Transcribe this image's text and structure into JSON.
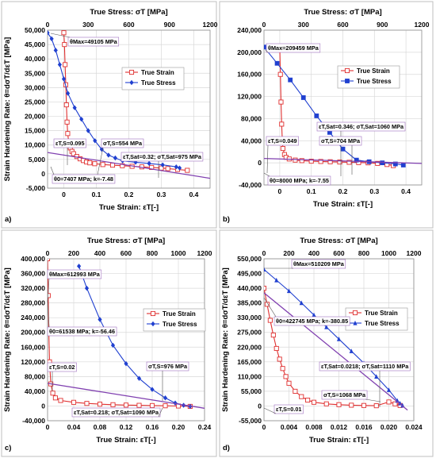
{
  "figure": {
    "panels": [
      {
        "id": "a",
        "panel_label": "a)",
        "top_axis_label": "True Stress: σT [MPa]",
        "bottom_axis_label": "True Strain: εT[-]",
        "y_label": "Strain Hardening Rate: θ=dσT/dεT [MPa]",
        "legend": [
          "True Strain",
          "True Stress"
        ],
        "annotations": [
          {
            "text": "θMax=49105 MPa"
          },
          {
            "text": "εT,S=0.095"
          },
          {
            "text": "σT,S=554 MPa"
          },
          {
            "text": "εT,Sat=0.32; σT,Sat=975 MPa"
          },
          {
            "text": "θ0=7407 MPa; k=-7.48"
          }
        ]
      },
      {
        "id": "b",
        "panel_label": "b)",
        "top_axis_label": "True Stress: σT [MPa]",
        "bottom_axis_label": "True Strain: εT[-]",
        "legend": [
          "True Strain",
          "True Stress"
        ],
        "annotations": [
          {
            "text": "θMax=209459 MPa"
          },
          {
            "text": "εT,S=0.049"
          },
          {
            "text": "εT,Sat=0.346; σT,Sat=1060 MPa"
          },
          {
            "text": "σT,S=704 MPa"
          },
          {
            "text": "θ0=8000 MPa; k=-7.55"
          }
        ]
      },
      {
        "id": "c",
        "panel_label": "c)",
        "top_axis_label": "True Stress: σT [MPa]",
        "bottom_axis_label": "True Strain: εT[-]",
        "y_label": "Strain Hardening Rate: θ=dσT/dεT [MPa]",
        "legend": [
          "True Strain",
          "True Stress"
        ],
        "annotations": [
          {
            "text": "θMax=612993 MPa"
          },
          {
            "text": "θ0=61538 MPa; k=-56.46"
          },
          {
            "text": "εT,S=0.02"
          },
          {
            "text": "σT,S=976 MPa"
          },
          {
            "text": "εT,Sat=0.218; σT,Sat=1090 MPa"
          }
        ]
      },
      {
        "id": "d",
        "panel_label": "d)",
        "top_axis_label": "True Stress: σT [MPa]",
        "bottom_axis_label": "True Strain: εT[-]",
        "y_label": "Strain Hardening Rate: θ=dσT/dεT [MPa]",
        "legend": [
          "True Strain",
          "True Stress"
        ],
        "annotations": [
          {
            "text": "θMax=510209 MPa"
          },
          {
            "text": "θ0=422745 MPa; k=-380.85"
          },
          {
            "text": "εT,Sat=0.0218; σT,Sat=1110 MPa"
          },
          {
            "text": "σT,S=1068 MPa"
          },
          {
            "text": "εT,S=0.01"
          }
        ]
      }
    ]
  },
  "chart_data": [
    {
      "panel": "a",
      "type": "line",
      "xlim_strain": [
        -0.05,
        0.45
      ],
      "xticks_strain": [
        0,
        0.1,
        0.2,
        0.3,
        0.4
      ],
      "xlim_stress": [
        0,
        1200
      ],
      "xticks_stress": [
        0,
        300,
        600,
        900,
        1200
      ],
      "ylim": [
        -5000,
        50000
      ],
      "yticks": [
        -5000,
        0,
        5000,
        10000,
        15000,
        20000,
        25000,
        30000,
        35000,
        40000,
        45000,
        50000
      ],
      "grid": true,
      "legend_position": "center-right",
      "series": [
        {
          "name": "True Strain",
          "axis": "bottom",
          "color": "#e03030",
          "marker": "open-square",
          "x": [
            0,
            0.002,
            0.004,
            0.006,
            0.008,
            0.01,
            0.012,
            0.015,
            0.02,
            0.025,
            0.03,
            0.04,
            0.05,
            0.06,
            0.07,
            0.08,
            0.095,
            0.12,
            0.15,
            0.18,
            0.21,
            0.24,
            0.27,
            0.3,
            0.32,
            0.35,
            0.38
          ],
          "y": [
            49105,
            45000,
            38000,
            31000,
            24000,
            18000,
            14000,
            11000,
            9000,
            7800,
            7000,
            6000,
            5200,
            4600,
            4100,
            3800,
            3500,
            3200,
            3000,
            2800,
            2600,
            2400,
            2200,
            2000,
            1800,
            1500,
            1200
          ]
        },
        {
          "name": "True Stress",
          "axis": "top",
          "color": "#2040d0",
          "marker": "filled-diamond",
          "x": [
            0,
            30,
            60,
            90,
            120,
            150,
            200,
            250,
            300,
            350,
            400,
            450,
            500,
            554,
            650,
            750,
            850,
            950,
            975
          ],
          "y": [
            49105,
            47000,
            43000,
            38000,
            33000,
            28000,
            23000,
            19000,
            15000,
            11500,
            8500,
            6500,
            5500,
            4500,
            4000,
            3600,
            3100,
            2400,
            2000
          ]
        },
        {
          "name": "θ0=7407 MPa; k=-7.48",
          "axis": "top",
          "color": "#8040b0",
          "marker": "none",
          "x": [
            0,
            1200
          ],
          "y": [
            7407,
            -1569
          ]
        }
      ]
    },
    {
      "panel": "b",
      "type": "line",
      "xlim_strain": [
        -0.05,
        0.45
      ],
      "xticks_strain": [
        0,
        0.1,
        0.2,
        0.3,
        0.4
      ],
      "xlim_stress": [
        0,
        1200
      ],
      "xticks_stress": [
        0,
        300,
        600,
        900,
        1200
      ],
      "ylim": [
        -40000,
        240000
      ],
      "yticks": [
        -40000,
        0,
        40000,
        80000,
        120000,
        160000,
        200000,
        240000
      ],
      "grid": true,
      "legend_position": "center-right",
      "series": [
        {
          "name": "True Strain",
          "axis": "bottom",
          "color": "#e03030",
          "marker": "open-square",
          "x": [
            0,
            0.002,
            0.004,
            0.006,
            0.008,
            0.01,
            0.015,
            0.02,
            0.03,
            0.049,
            0.07,
            0.1,
            0.13,
            0.16,
            0.19,
            0.22,
            0.25,
            0.28,
            0.31,
            0.34,
            0.36
          ],
          "y": [
            209459,
            160000,
            110000,
            70000,
            42000,
            26000,
            15000,
            10000,
            7000,
            5000,
            4000,
            3000,
            2500,
            2000,
            1500,
            1000,
            500,
            0,
            -1000,
            -3000,
            -5000
          ]
        },
        {
          "name": "True Stress",
          "axis": "top",
          "color": "#2040d0",
          "marker": "filled-square",
          "x": [
            0,
            100,
            200,
            300,
            400,
            500,
            600,
            704,
            800,
            900,
            1000,
            1060
          ],
          "y": [
            209459,
            180000,
            150000,
            118000,
            85000,
            55000,
            25000,
            5000,
            2000,
            0,
            -2000,
            -4000
          ]
        },
        {
          "name": "θ0=8000 MPa; k=-7.55",
          "axis": "top",
          "color": "#8040b0",
          "marker": "none",
          "x": [
            0,
            1200
          ],
          "y": [
            8000,
            -1060
          ]
        }
      ]
    },
    {
      "panel": "c",
      "type": "line",
      "xlim_strain": [
        0,
        0.24
      ],
      "xticks_strain": [
        0,
        0.04,
        0.08,
        0.12,
        0.16,
        0.2,
        0.24
      ],
      "xlim_stress": [
        0,
        1200
      ],
      "xticks_stress": [
        0,
        200,
        400,
        600,
        800,
        1000,
        1200
      ],
      "ylim": [
        -40000,
        400000
      ],
      "yticks": [
        -40000,
        0,
        40000,
        80000,
        120000,
        160000,
        200000,
        240000,
        280000,
        320000,
        360000,
        400000
      ],
      "grid": true,
      "legend_position": "center-right",
      "series": [
        {
          "name": "True Strain",
          "axis": "bottom",
          "color": "#e03030",
          "marker": "open-square",
          "x": [
            0,
            0.001,
            0.002,
            0.003,
            0.005,
            0.008,
            0.012,
            0.02,
            0.04,
            0.06,
            0.08,
            0.1,
            0.12,
            0.14,
            0.16,
            0.18,
            0.2,
            0.218
          ],
          "y": [
            400000,
            300000,
            200000,
            120000,
            60000,
            35000,
            22000,
            15000,
            10000,
            7000,
            5000,
            3500,
            2500,
            1800,
            1200,
            600,
            0,
            -1000
          ]
        },
        {
          "name": "True Stress",
          "axis": "top",
          "color": "#2040d0",
          "marker": "filled-diamond",
          "x": [
            240,
            300,
            400,
            500,
            600,
            700,
            800,
            900,
            976,
            1040,
            1090
          ],
          "y": [
            380000,
            320000,
            235000,
            165000,
            115000,
            75000,
            45000,
            22000,
            8000,
            2000,
            -1000
          ]
        },
        {
          "name": "θ0=61538 MPa; k=-56.46",
          "axis": "top",
          "color": "#8040b0",
          "marker": "none",
          "x": [
            0,
            1200
          ],
          "y": [
            61538,
            -6214
          ]
        }
      ]
    },
    {
      "panel": "d",
      "type": "line",
      "xlim_strain": [
        0,
        0.024
      ],
      "xticks_strain": [
        0,
        0.004,
        0.008,
        0.012,
        0.016,
        0.02,
        0.024
      ],
      "xlim_stress": [
        0,
        1200
      ],
      "xticks_stress": [
        0,
        200,
        400,
        600,
        800,
        1000,
        1200
      ],
      "ylim": [
        -55000,
        550000
      ],
      "yticks": [
        -55000,
        0,
        55000,
        110000,
        165000,
        220000,
        275000,
        330000,
        385000,
        440000,
        495000,
        550000
      ],
      "grid": true,
      "legend_position": "center-right",
      "series": [
        {
          "name": "True Strain",
          "axis": "bottom",
          "color": "#e03030",
          "marker": "open-square",
          "x": [
            0,
            0.0005,
            0.001,
            0.0015,
            0.002,
            0.0025,
            0.003,
            0.0035,
            0.004,
            0.005,
            0.006,
            0.007,
            0.008,
            0.01,
            0.012,
            0.014,
            0.016,
            0.018,
            0.02,
            0.021,
            0.0218
          ],
          "y": [
            440000,
            380000,
            320000,
            265000,
            215000,
            175000,
            140000,
            110000,
            85000,
            55000,
            35000,
            22000,
            14000,
            8000,
            5000,
            3000,
            2000,
            1000,
            15000,
            8000,
            2000
          ]
        },
        {
          "name": "True Stress",
          "axis": "top",
          "color": "#2040d0",
          "marker": "filled-triangle",
          "x": [
            0,
            100,
            200,
            300,
            400,
            500,
            600,
            700,
            800,
            900,
            1000,
            1068,
            1090,
            1110
          ],
          "y": [
            510209,
            470000,
            430000,
            385000,
            340000,
            295000,
            250000,
            205000,
            160000,
            110000,
            60000,
            20000,
            10000,
            2000
          ]
        },
        {
          "name": "θ0=422745 MPa; k=-380.85",
          "axis": "top",
          "color": "#8040b0",
          "marker": "none",
          "x": [
            0,
            1150
          ],
          "y": [
            422745,
            -15233
          ]
        }
      ]
    }
  ]
}
